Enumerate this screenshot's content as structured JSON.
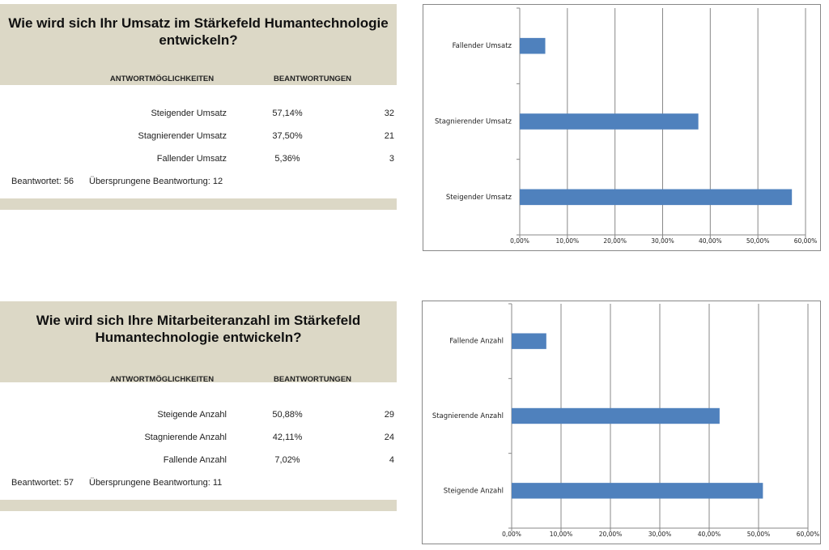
{
  "tables": [
    {
      "title": "Wie wird sich Ihr Umsatz im Stärkefeld Humantechnologie entwickeln?",
      "headers": [
        "ANTWORTMÖGLICHKEITEN",
        "BEANTWORTUNGEN"
      ],
      "rows": [
        [
          "Steigender Umsatz",
          "57,14%",
          "32"
        ],
        [
          "Stagnierender Umsatz",
          "37,50%",
          "21"
        ],
        [
          "Fallender Umsatz",
          "5,36%",
          "3"
        ]
      ],
      "footer": [
        "Beantwortet: 56",
        "Übersprungene Beantwortung: 12"
      ]
    },
    {
      "title": "Wie wird sich Ihre Mitarbeiteranzahl  im Stärkefeld Humantechnologie entwickeln?",
      "headers": [
        "ANTWORTMÖGLICHKEITEN",
        "BEANTWORTUNGEN"
      ],
      "rows": [
        [
          "Steigende Anzahl",
          "50,88%",
          "29"
        ],
        [
          "Stagnierende Anzahl",
          "42,11%",
          "24"
        ],
        [
          "Fallende Anzahl",
          "7,02%",
          "4"
        ]
      ],
      "footer": [
        "Beantwortet: 57",
        "Übersprungene Beantwortung: 11"
      ]
    }
  ],
  "chart_data": [
    {
      "type": "bar",
      "orientation": "horizontal",
      "color": "#4f81bd",
      "grid": true,
      "categories": [
        "Fallender Umsatz",
        "Stagnierender Umsatz",
        "Steigender Umsatz"
      ],
      "values": [
        5.36,
        37.5,
        57.14
      ],
      "xlim": [
        0,
        60
      ],
      "xticks": [
        {
          "value": 0,
          "label": "0,00%"
        },
        {
          "value": 10,
          "label": "10,00%"
        },
        {
          "value": 20,
          "label": "20,00%"
        },
        {
          "value": 30,
          "label": "30,00%"
        },
        {
          "value": 40,
          "label": "40,00%"
        },
        {
          "value": 50,
          "label": "50,00%"
        },
        {
          "value": 60,
          "label": "60,00%"
        }
      ]
    },
    {
      "type": "bar",
      "orientation": "horizontal",
      "color": "#4f81bd",
      "grid": true,
      "categories": [
        "Fallende Anzahl",
        "Stagnierende Anzahl",
        "Steigende Anzahl"
      ],
      "values": [
        7.02,
        42.11,
        50.88
      ],
      "xlim": [
        0,
        60
      ],
      "xticks": [
        {
          "value": 0,
          "label": "0,00%"
        },
        {
          "value": 10,
          "label": "10,00%"
        },
        {
          "value": 20,
          "label": "20,00%"
        },
        {
          "value": 30,
          "label": "30,00%"
        },
        {
          "value": 40,
          "label": "40,00%"
        },
        {
          "value": 50,
          "label": "50,00%"
        },
        {
          "value": 60,
          "label": "60,00%"
        }
      ]
    }
  ]
}
